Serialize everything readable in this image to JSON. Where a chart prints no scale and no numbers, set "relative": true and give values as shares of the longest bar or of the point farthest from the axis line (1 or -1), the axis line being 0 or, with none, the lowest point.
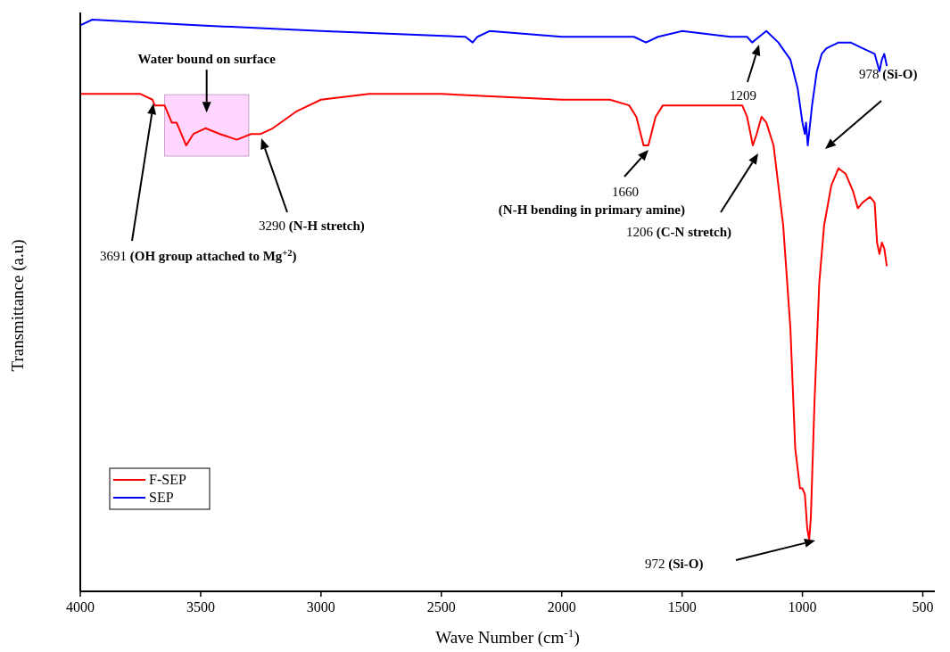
{
  "chart_data": {
    "type": "line",
    "xlabel": "Wave Number (cm$^{-1}$)",
    "ylabel": "Transmittance (a.u)",
    "relative": true,
    "xlim": [
      4000,
      450
    ],
    "xticks": [
      4000,
      3500,
      3000,
      2500,
      2000,
      1500,
      1000,
      500
    ],
    "tick_labels": "x",
    "legend": "bottom left",
    "line_style": "solid",
    "marker": "none",
    "series": [
      {
        "name": "F-SEP",
        "color": "#ff0000",
        "x": [
          4000,
          3750,
          3700,
          3691,
          3650,
          3620,
          3600,
          3560,
          3530,
          3480,
          3420,
          3350,
          3290,
          3250,
          3200,
          3100,
          3000,
          2800,
          2500,
          2000,
          1800,
          1720,
          1690,
          1660,
          1640,
          1610,
          1580,
          1400,
          1250,
          1230,
          1206,
          1190,
          1170,
          1150,
          1120,
          1080,
          1050,
          1030,
          1010,
          1000,
          990,
          980,
          972,
          965,
          950,
          930,
          910,
          880,
          850,
          820,
          790,
          770,
          750,
          720,
          700,
          690,
          680,
          670,
          660,
          650
        ],
        "values": [
          0.87,
          0.87,
          0.86,
          0.85,
          0.85,
          0.82,
          0.82,
          0.78,
          0.8,
          0.81,
          0.8,
          0.79,
          0.8,
          0.8,
          0.81,
          0.84,
          0.86,
          0.87,
          0.87,
          0.86,
          0.86,
          0.85,
          0.83,
          0.78,
          0.78,
          0.83,
          0.85,
          0.85,
          0.85,
          0.83,
          0.78,
          0.8,
          0.83,
          0.82,
          0.78,
          0.64,
          0.46,
          0.25,
          0.18,
          0.18,
          0.17,
          0.11,
          0.09,
          0.13,
          0.33,
          0.54,
          0.64,
          0.71,
          0.74,
          0.73,
          0.7,
          0.67,
          0.68,
          0.69,
          0.68,
          0.61,
          0.59,
          0.61,
          0.6,
          0.57
        ]
      },
      {
        "name": "SEP",
        "color": "#0000ff",
        "x": [
          4000,
          3950,
          3500,
          3000,
          2400,
          2370,
          2350,
          2300,
          2000,
          1700,
          1650,
          1600,
          1500,
          1300,
          1230,
          1209,
          1180,
          1150,
          1100,
          1050,
          1020,
          1000,
          990,
          985,
          978,
          960,
          940,
          920,
          900,
          850,
          800,
          750,
          700,
          680,
          670,
          660,
          650
        ],
        "values": [
          0.99,
          1.0,
          0.99,
          0.98,
          0.97,
          0.96,
          0.97,
          0.98,
          0.97,
          0.97,
          0.96,
          0.97,
          0.98,
          0.97,
          0.97,
          0.96,
          0.97,
          0.98,
          0.96,
          0.93,
          0.88,
          0.82,
          0.8,
          0.82,
          0.78,
          0.85,
          0.91,
          0.94,
          0.95,
          0.96,
          0.96,
          0.95,
          0.94,
          0.91,
          0.93,
          0.94,
          0.92
        ]
      }
    ],
    "bands": [
      {
        "axis": "x",
        "from": 3650,
        "to": 3300,
        "label": "Water bound on surface",
        "color": "#ffccff"
      }
    ],
    "annotations": [
      "3691 (OH group attached to Mg$^{+2}$)",
      "3290 (N-H stretch)",
      "1660 (N-H bending in primary amine)",
      "1206 (C-N stretch)",
      "1209",
      "978 (Si-O)",
      "972 (Si-O)"
    ]
  }
}
